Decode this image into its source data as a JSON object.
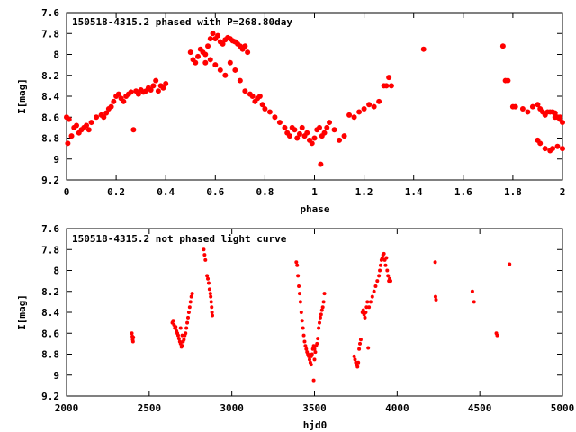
{
  "chart_data": [
    {
      "type": "scatter",
      "title": "150518-4315.2 phased with P=268.80day",
      "xlabel": "phase",
      "ylabel": "I[mag]",
      "xlim": [
        0,
        2
      ],
      "ylim": [
        9.2,
        7.6
      ],
      "y_inverted": true,
      "grid": false,
      "x_ticks": [
        "0",
        "0.2",
        "0.4",
        "0.6",
        "0.8",
        "1",
        "1.2",
        "1.4",
        "1.6",
        "1.8",
        "2"
      ],
      "y_ticks": [
        "7.6",
        "7.8",
        "8",
        "8.2",
        "8.4",
        "8.6",
        "8.8",
        "9",
        "9.2"
      ],
      "marker_color": "#ff0000",
      "points": [
        [
          0.0,
          8.6
        ],
        [
          0.01,
          8.62
        ],
        [
          0.005,
          8.85
        ],
        [
          0.02,
          8.78
        ],
        [
          0.03,
          8.7
        ],
        [
          0.04,
          8.68
        ],
        [
          0.05,
          8.75
        ],
        [
          0.06,
          8.72
        ],
        [
          0.07,
          8.7
        ],
        [
          0.08,
          8.68
        ],
        [
          0.09,
          8.72
        ],
        [
          0.1,
          8.65
        ],
        [
          0.12,
          8.6
        ],
        [
          0.14,
          8.58
        ],
        [
          0.15,
          8.6
        ],
        [
          0.16,
          8.56
        ],
        [
          0.17,
          8.52
        ],
        [
          0.18,
          8.5
        ],
        [
          0.19,
          8.45
        ],
        [
          0.2,
          8.4
        ],
        [
          0.21,
          8.38
        ],
        [
          0.22,
          8.42
        ],
        [
          0.23,
          8.45
        ],
        [
          0.24,
          8.4
        ],
        [
          0.25,
          8.38
        ],
        [
          0.26,
          8.36
        ],
        [
          0.27,
          8.72
        ],
        [
          0.28,
          8.35
        ],
        [
          0.29,
          8.38
        ],
        [
          0.3,
          8.34
        ],
        [
          0.31,
          8.36
        ],
        [
          0.32,
          8.35
        ],
        [
          0.33,
          8.32
        ],
        [
          0.34,
          8.34
        ],
        [
          0.35,
          8.3
        ],
        [
          0.36,
          8.25
        ],
        [
          0.37,
          8.35
        ],
        [
          0.38,
          8.3
        ],
        [
          0.39,
          8.32
        ],
        [
          0.4,
          8.28
        ],
        [
          0.5,
          7.98
        ],
        [
          0.51,
          8.05
        ],
        [
          0.52,
          8.08
        ],
        [
          0.53,
          8.02
        ],
        [
          0.54,
          7.95
        ],
        [
          0.55,
          7.98
        ],
        [
          0.56,
          8.0
        ],
        [
          0.57,
          7.92
        ],
        [
          0.58,
          7.85
        ],
        [
          0.59,
          7.8
        ],
        [
          0.6,
          7.85
        ],
        [
          0.61,
          7.82
        ],
        [
          0.62,
          7.88
        ],
        [
          0.63,
          7.9
        ],
        [
          0.64,
          7.86
        ],
        [
          0.65,
          7.84
        ],
        [
          0.66,
          7.85
        ],
        [
          0.67,
          7.87
        ],
        [
          0.68,
          7.88
        ],
        [
          0.69,
          7.9
        ],
        [
          0.7,
          7.92
        ],
        [
          0.71,
          7.95
        ],
        [
          0.72,
          7.92
        ],
        [
          0.73,
          7.98
        ],
        [
          0.56,
          8.08
        ],
        [
          0.58,
          8.05
        ],
        [
          0.6,
          8.1
        ],
        [
          0.62,
          8.15
        ],
        [
          0.64,
          8.2
        ],
        [
          0.66,
          8.08
        ],
        [
          0.68,
          8.15
        ],
        [
          0.7,
          8.25
        ],
        [
          0.72,
          8.35
        ],
        [
          0.74,
          8.38
        ],
        [
          0.75,
          8.4
        ],
        [
          0.76,
          8.45
        ],
        [
          0.77,
          8.42
        ],
        [
          0.78,
          8.4
        ],
        [
          0.79,
          8.48
        ],
        [
          0.8,
          8.52
        ],
        [
          0.82,
          8.55
        ],
        [
          0.84,
          8.6
        ],
        [
          0.86,
          8.65
        ],
        [
          0.88,
          8.7
        ],
        [
          0.89,
          8.75
        ],
        [
          0.9,
          8.78
        ],
        [
          0.91,
          8.7
        ],
        [
          0.92,
          8.72
        ],
        [
          0.93,
          8.8
        ],
        [
          0.94,
          8.76
        ],
        [
          0.95,
          8.7
        ],
        [
          0.96,
          8.78
        ],
        [
          0.97,
          8.75
        ],
        [
          0.98,
          8.82
        ],
        [
          0.99,
          8.85
        ],
        [
          1.0,
          8.8
        ],
        [
          1.01,
          8.72
        ],
        [
          1.02,
          8.7
        ],
        [
          1.025,
          9.05
        ],
        [
          1.03,
          8.78
        ],
        [
          1.04,
          8.75
        ],
        [
          1.05,
          8.7
        ],
        [
          1.06,
          8.65
        ],
        [
          1.08,
          8.72
        ],
        [
          1.1,
          8.82
        ],
        [
          1.12,
          8.78
        ],
        [
          1.14,
          8.58
        ],
        [
          1.16,
          8.6
        ],
        [
          1.18,
          8.55
        ],
        [
          1.2,
          8.52
        ],
        [
          1.22,
          8.48
        ],
        [
          1.24,
          8.5
        ],
        [
          1.26,
          8.45
        ],
        [
          1.28,
          8.3
        ],
        [
          1.29,
          8.3
        ],
        [
          1.3,
          8.22
        ],
        [
          1.31,
          8.3
        ],
        [
          1.44,
          7.95
        ],
        [
          1.76,
          7.92
        ],
        [
          1.77,
          8.25
        ],
        [
          1.78,
          8.25
        ],
        [
          1.8,
          8.5
        ],
        [
          1.81,
          8.5
        ],
        [
          1.84,
          8.52
        ],
        [
          1.86,
          8.55
        ],
        [
          1.88,
          8.5
        ],
        [
          1.9,
          8.48
        ],
        [
          1.91,
          8.52
        ],
        [
          1.92,
          8.55
        ],
        [
          1.93,
          8.58
        ],
        [
          1.94,
          8.55
        ],
        [
          1.95,
          8.55
        ],
        [
          1.96,
          8.55
        ],
        [
          1.97,
          8.56
        ],
        [
          1.98,
          8.6
        ],
        [
          1.99,
          8.62
        ],
        [
          2.0,
          8.65
        ],
        [
          1.9,
          8.82
        ],
        [
          1.91,
          8.85
        ],
        [
          1.93,
          8.9
        ],
        [
          1.95,
          8.92
        ],
        [
          1.96,
          8.9
        ],
        [
          1.98,
          8.88
        ],
        [
          2.0,
          8.9
        ],
        [
          1.99,
          8.6
        ],
        [
          1.97,
          8.6
        ]
      ]
    },
    {
      "type": "scatter",
      "title": "150518-4315.2 not phased light curve",
      "xlabel": "hjd0",
      "ylabel": "I[mag]",
      "xlim": [
        2000,
        5000
      ],
      "ylim": [
        9.2,
        7.6
      ],
      "y_inverted": true,
      "grid": false,
      "x_ticks": [
        "2000",
        "2500",
        "3000",
        "3500",
        "4000",
        "4500",
        "5000"
      ],
      "y_ticks": [
        "7.6",
        "7.8",
        "8",
        "8.2",
        "8.4",
        "8.6",
        "8.8",
        "9",
        "9.2"
      ],
      "marker_color": "#ff0000",
      "points": [
        [
          2395,
          8.6
        ],
        [
          2398,
          8.63
        ],
        [
          2400,
          8.66
        ],
        [
          2402,
          8.68
        ],
        [
          2404,
          8.64
        ],
        [
          2640,
          8.5
        ],
        [
          2645,
          8.48
        ],
        [
          2650,
          8.52
        ],
        [
          2655,
          8.55
        ],
        [
          2660,
          8.54
        ],
        [
          2665,
          8.58
        ],
        [
          2670,
          8.6
        ],
        [
          2675,
          8.62
        ],
        [
          2680,
          8.65
        ],
        [
          2685,
          8.68
        ],
        [
          2690,
          8.7
        ],
        [
          2695,
          8.73
        ],
        [
          2700,
          8.72
        ],
        [
          2705,
          8.68
        ],
        [
          2710,
          8.66
        ],
        [
          2715,
          8.62
        ],
        [
          2720,
          8.6
        ],
        [
          2725,
          8.55
        ],
        [
          2730,
          8.5
        ],
        [
          2735,
          8.45
        ],
        [
          2740,
          8.4
        ],
        [
          2745,
          8.35
        ],
        [
          2750,
          8.3
        ],
        [
          2755,
          8.25
        ],
        [
          2760,
          8.22
        ],
        [
          2700,
          8.62
        ],
        [
          2690,
          8.55
        ],
        [
          2830,
          7.8
        ],
        [
          2835,
          7.85
        ],
        [
          2840,
          7.9
        ],
        [
          2850,
          8.05
        ],
        [
          2855,
          8.08
        ],
        [
          2860,
          8.12
        ],
        [
          2865,
          8.18
        ],
        [
          2870,
          8.22
        ],
        [
          2872,
          8.25
        ],
        [
          2875,
          8.3
        ],
        [
          2878,
          8.35
        ],
        [
          2880,
          8.4
        ],
        [
          2882,
          8.43
        ],
        [
          3390,
          7.92
        ],
        [
          3395,
          7.95
        ],
        [
          3400,
          8.05
        ],
        [
          3405,
          8.15
        ],
        [
          3410,
          8.22
        ],
        [
          3415,
          8.3
        ],
        [
          3420,
          8.4
        ],
        [
          3425,
          8.48
        ],
        [
          3430,
          8.55
        ],
        [
          3435,
          8.62
        ],
        [
          3440,
          8.68
        ],
        [
          3445,
          8.72
        ],
        [
          3450,
          8.75
        ],
        [
          3455,
          8.78
        ],
        [
          3460,
          8.8
        ],
        [
          3465,
          8.82
        ],
        [
          3470,
          8.85
        ],
        [
          3475,
          8.88
        ],
        [
          3480,
          8.9
        ],
        [
          3485,
          8.8
        ],
        [
          3490,
          8.75
        ],
        [
          3495,
          8.72
        ],
        [
          3500,
          8.75
        ],
        [
          3505,
          8.78
        ],
        [
          3510,
          8.72
        ],
        [
          3515,
          8.7
        ],
        [
          3520,
          8.65
        ],
        [
          3525,
          8.55
        ],
        [
          3530,
          8.5
        ],
        [
          3535,
          8.45
        ],
        [
          3540,
          8.42
        ],
        [
          3545,
          8.38
        ],
        [
          3550,
          8.35
        ],
        [
          3555,
          8.3
        ],
        [
          3560,
          8.22
        ],
        [
          3495,
          9.05
        ],
        [
          3480,
          8.82
        ],
        [
          3500,
          8.85
        ],
        [
          3740,
          8.82
        ],
        [
          3745,
          8.85
        ],
        [
          3750,
          8.88
        ],
        [
          3755,
          8.9
        ],
        [
          3760,
          8.92
        ],
        [
          3765,
          8.88
        ],
        [
          3770,
          8.75
        ],
        [
          3775,
          8.7
        ],
        [
          3780,
          8.66
        ],
        [
          3790,
          8.4
        ],
        [
          3795,
          8.38
        ],
        [
          3800,
          8.42
        ],
        [
          3805,
          8.45
        ],
        [
          3810,
          8.4
        ],
        [
          3815,
          8.35
        ],
        [
          3820,
          8.3
        ],
        [
          3825,
          8.74
        ],
        [
          3830,
          8.35
        ],
        [
          3840,
          8.3
        ],
        [
          3850,
          8.25
        ],
        [
          3860,
          8.2
        ],
        [
          3870,
          8.15
        ],
        [
          3880,
          8.1
        ],
        [
          3890,
          8.05
        ],
        [
          3895,
          8.0
        ],
        [
          3900,
          7.95
        ],
        [
          3905,
          7.9
        ],
        [
          3910,
          7.88
        ],
        [
          3915,
          7.85
        ],
        [
          3920,
          7.84
        ],
        [
          3925,
          7.9
        ],
        [
          3930,
          7.95
        ],
        [
          3935,
          7.88
        ],
        [
          3940,
          8.0
        ],
        [
          3945,
          8.05
        ],
        [
          3950,
          8.1
        ],
        [
          3955,
          8.08
        ],
        [
          3960,
          8.1
        ],
        [
          4230,
          7.92
        ],
        [
          4232,
          8.25
        ],
        [
          4235,
          8.28
        ],
        [
          4455,
          8.2
        ],
        [
          4465,
          8.3
        ],
        [
          4600,
          8.6
        ],
        [
          4605,
          8.62
        ],
        [
          4680,
          7.94
        ]
      ]
    }
  ]
}
